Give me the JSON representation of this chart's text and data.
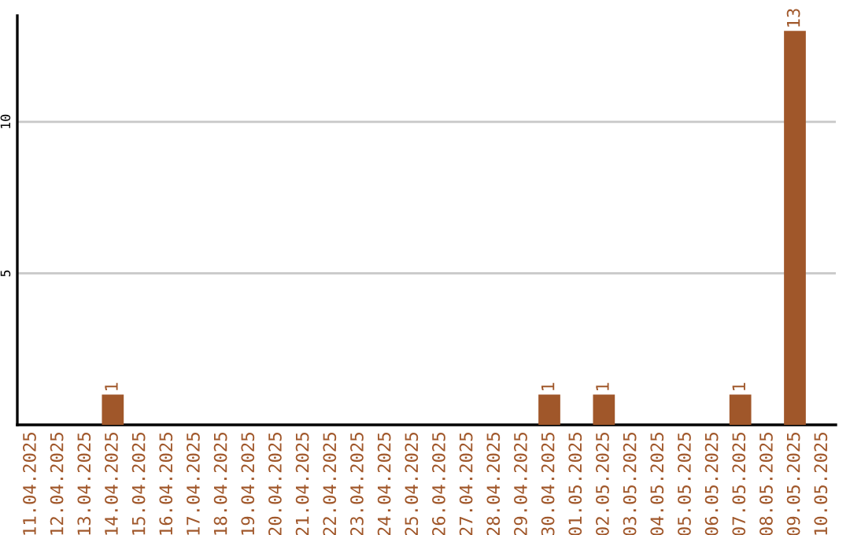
{
  "chart_data": {
    "type": "bar",
    "categories": [
      "11.04.2025",
      "12.04.2025",
      "13.04.2025",
      "14.04.2025",
      "15.04.2025",
      "16.04.2025",
      "17.04.2025",
      "18.04.2025",
      "19.04.2025",
      "20.04.2025",
      "21.04.2025",
      "22.04.2025",
      "23.04.2025",
      "24.04.2025",
      "25.04.2025",
      "26.04.2025",
      "27.04.2025",
      "28.04.2025",
      "29.04.2025",
      "30.04.2025",
      "01.05.2025",
      "02.05.2025",
      "03.05.2025",
      "04.05.2025",
      "05.05.2025",
      "06.05.2025",
      "07.05.2025",
      "08.05.2025",
      "09.05.2025",
      "10.05.2025"
    ],
    "values": [
      0,
      0,
      0,
      1,
      0,
      0,
      0,
      0,
      0,
      0,
      0,
      0,
      0,
      0,
      0,
      0,
      0,
      0,
      0,
      1,
      0,
      1,
      0,
      0,
      0,
      0,
      1,
      0,
      13,
      0
    ],
    "value_labels": [
      null,
      null,
      null,
      "1",
      null,
      null,
      null,
      null,
      null,
      null,
      null,
      null,
      null,
      null,
      null,
      null,
      null,
      null,
      null,
      "1",
      null,
      "1",
      null,
      null,
      null,
      null,
      "1",
      null,
      "13",
      null
    ],
    "color": "#a0572a",
    "ylim": [
      0,
      13.5
    ],
    "yticks": [
      5,
      10
    ],
    "grid": "y"
  }
}
